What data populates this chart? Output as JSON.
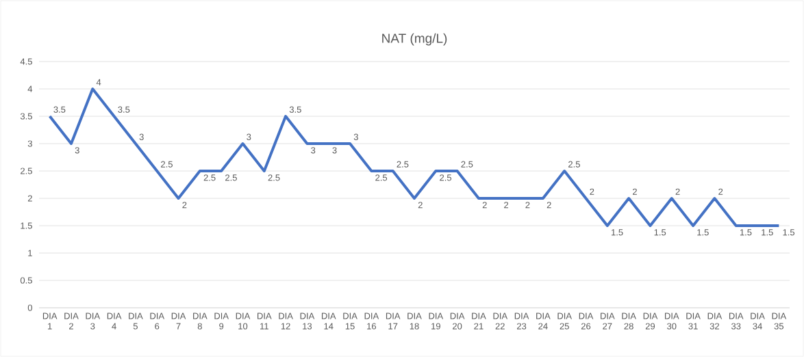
{
  "chart_data": {
    "type": "line",
    "title": "NAT (mg/L)",
    "categories": [
      "DIA 1",
      "DIA 2",
      "DIA 3",
      "DIA 4",
      "DIA 5",
      "DIA 6",
      "DIA 7",
      "DIA 8",
      "DIA 9",
      "DIA 10",
      "DIA 11",
      "DIA 12",
      "DIA 13",
      "DIA 14",
      "DIA 15",
      "DIA 16",
      "DIA 17",
      "DIA 18",
      "DIA 19",
      "DIA 20",
      "DIA 21",
      "DIA 22",
      "DIA 23",
      "DIA 24",
      "DIA 25",
      "DIA 26",
      "DIA 27",
      "DIA 28",
      "DIA 29",
      "DIA 30",
      "DIA 31",
      "DIA 32",
      "DIA 33",
      "DIA 34",
      "DIA 35"
    ],
    "values": [
      3.5,
      3,
      4,
      3.5,
      3,
      2.5,
      2,
      2.5,
      2.5,
      3,
      2.5,
      3.5,
      3,
      3,
      3,
      2.5,
      2.5,
      2,
      2.5,
      2.5,
      2,
      2,
      2,
      2,
      2.5,
      2,
      1.5,
      2,
      1.5,
      2,
      1.5,
      2,
      1.5,
      1.5,
      1.5
    ],
    "color": "#4472c4",
    "ylim": [
      0,
      4.5
    ],
    "yticks": [
      0,
      0.5,
      1,
      1.5,
      2,
      2.5,
      3,
      3.5,
      4,
      4.5
    ],
    "grid": "y",
    "data_labels": true
  }
}
